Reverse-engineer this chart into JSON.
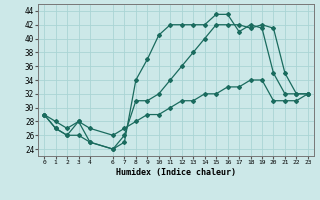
{
  "xlabel": "Humidex (Indice chaleur)",
  "xlim": [
    -0.5,
    23.5
  ],
  "ylim": [
    23,
    45
  ],
  "yticks": [
    24,
    26,
    28,
    30,
    32,
    34,
    36,
    38,
    40,
    42,
    44
  ],
  "xticks": [
    0,
    1,
    2,
    3,
    4,
    6,
    7,
    8,
    9,
    10,
    11,
    12,
    13,
    14,
    15,
    16,
    17,
    18,
    19,
    20,
    21,
    22,
    23
  ],
  "bg_color": "#cce8e8",
  "line_color": "#1a6b5e",
  "grid_color": "#aad4d4",
  "line1_x": [
    0,
    1,
    2,
    3,
    4,
    6,
    7,
    8,
    9,
    10,
    11,
    12,
    13,
    14,
    15,
    16,
    17,
    18,
    19,
    20,
    21,
    22,
    23
  ],
  "line1_y": [
    29,
    27,
    26,
    28,
    25,
    24,
    25,
    34,
    37,
    40.5,
    42,
    42,
    42,
    42,
    43.5,
    43.5,
    41,
    42,
    41.5,
    35,
    32,
    32,
    32
  ],
  "line2_x": [
    0,
    1,
    2,
    3,
    4,
    6,
    7,
    8,
    9,
    10,
    11,
    12,
    13,
    14,
    15,
    16,
    17,
    18,
    19,
    20,
    21,
    22,
    23
  ],
  "line2_y": [
    29,
    27,
    26,
    26,
    25,
    24,
    26,
    31,
    31,
    32,
    34,
    36,
    38,
    40,
    42,
    42,
    42,
    41.5,
    42,
    41.5,
    35,
    32,
    32
  ],
  "line3_x": [
    0,
    1,
    2,
    3,
    4,
    6,
    7,
    8,
    9,
    10,
    11,
    12,
    13,
    14,
    15,
    16,
    17,
    18,
    19,
    20,
    21,
    22,
    23
  ],
  "line3_y": [
    29,
    28,
    27,
    28,
    27,
    26,
    27,
    28,
    29,
    29,
    30,
    31,
    31,
    32,
    32,
    33,
    33,
    34,
    34,
    31,
    31,
    31,
    32
  ]
}
